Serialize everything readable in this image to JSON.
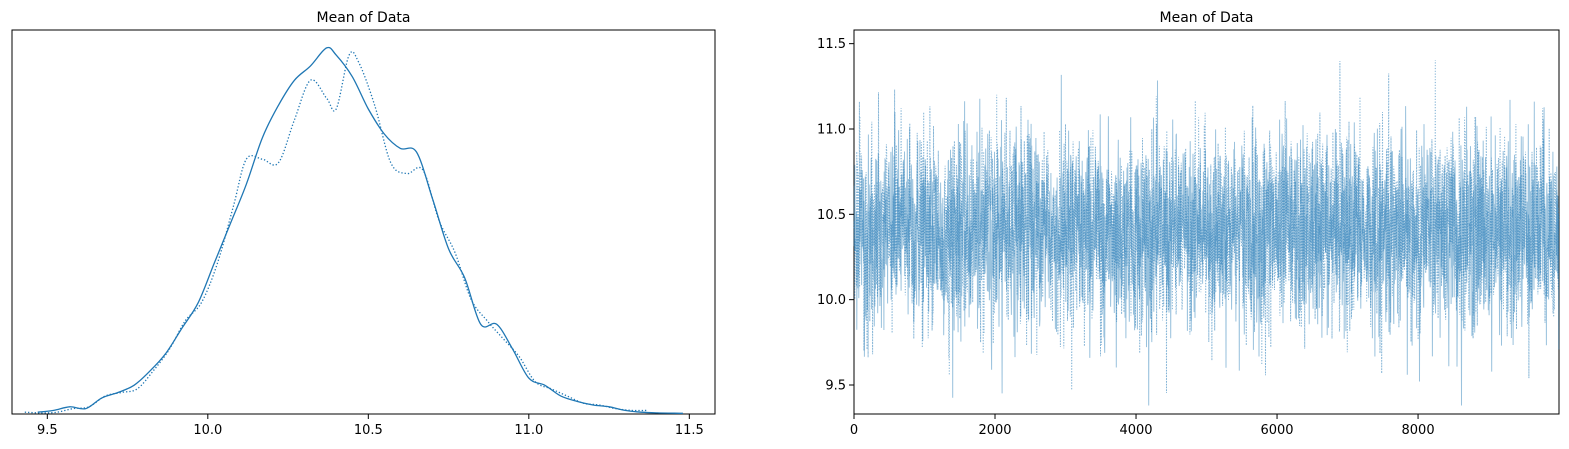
{
  "chart_data": [
    {
      "type": "line",
      "title": "Mean of Data",
      "xlabel": "",
      "ylabel": "",
      "xlim": [
        9.39,
        11.58
      ],
      "ylim": [
        0,
        1.07
      ],
      "xticks": [
        "9.5",
        "10.0",
        "10.5",
        "11.0",
        "11.5"
      ],
      "xtick_values": [
        9.5,
        10.0,
        10.5,
        11.0,
        11.5
      ],
      "yticks": [],
      "grid": false,
      "legend": "none",
      "color": "#1f77b4",
      "series": [
        {
          "style": "solid",
          "x": [
            9.47,
            9.52,
            9.57,
            9.62,
            9.67,
            9.72,
            9.77,
            9.82,
            9.87,
            9.92,
            9.97,
            10.02,
            10.07,
            10.12,
            10.17,
            10.22,
            10.27,
            10.32,
            10.37,
            10.4,
            10.45,
            10.5,
            10.55,
            10.6,
            10.65,
            10.7,
            10.75,
            10.8,
            10.85,
            10.9,
            10.95,
            11.0,
            11.05,
            11.1,
            11.15,
            11.2,
            11.25,
            11.3,
            11.35,
            11.4,
            11.48
          ],
          "y": [
            0.005,
            0.01,
            0.02,
            0.015,
            0.045,
            0.06,
            0.08,
            0.12,
            0.17,
            0.24,
            0.31,
            0.42,
            0.53,
            0.64,
            0.77,
            0.86,
            0.93,
            0.97,
            1.02,
            1.0,
            0.94,
            0.85,
            0.78,
            0.74,
            0.73,
            0.6,
            0.46,
            0.38,
            0.25,
            0.25,
            0.18,
            0.1,
            0.08,
            0.05,
            0.035,
            0.025,
            0.02,
            0.01,
            0.005,
            0.003,
            0.002
          ]
        },
        {
          "style": "dotted",
          "x": [
            9.43,
            9.48,
            9.53,
            9.58,
            9.63,
            9.68,
            9.73,
            9.78,
            9.83,
            9.88,
            9.93,
            9.98,
            10.03,
            10.08,
            10.12,
            10.17,
            10.22,
            10.27,
            10.32,
            10.37,
            10.4,
            10.44,
            10.47,
            10.52,
            10.57,
            10.62,
            10.67,
            10.72,
            10.77,
            10.82,
            10.87,
            10.92,
            10.97,
            11.02,
            11.07,
            11.12,
            11.17,
            11.22,
            11.27,
            11.32,
            11.37
          ],
          "y": [
            0.005,
            0.003,
            0.005,
            0.015,
            0.02,
            0.05,
            0.06,
            0.07,
            0.12,
            0.18,
            0.26,
            0.31,
            0.42,
            0.58,
            0.71,
            0.71,
            0.7,
            0.82,
            0.93,
            0.88,
            0.85,
            1.0,
            0.98,
            0.86,
            0.7,
            0.67,
            0.68,
            0.54,
            0.45,
            0.32,
            0.26,
            0.21,
            0.16,
            0.09,
            0.07,
            0.05,
            0.03,
            0.025,
            0.015,
            0.01,
            0.01
          ]
        }
      ]
    },
    {
      "type": "line",
      "title": "Mean of Data",
      "xlabel": "",
      "ylabel": "",
      "xlim": [
        0,
        9999
      ],
      "ylim": [
        9.33,
        11.58
      ],
      "xticks": [
        "0",
        "2000",
        "4000",
        "6000",
        "8000"
      ],
      "xtick_values": [
        0,
        2000,
        4000,
        6000,
        8000
      ],
      "yticks": [
        "9.5",
        "10.0",
        "10.5",
        "11.0",
        "11.5"
      ],
      "ytick_values": [
        9.5,
        10.0,
        10.5,
        11.0,
        11.5
      ],
      "grid": false,
      "legend": "none",
      "color": "#1f77b4",
      "n_draws": 10000,
      "trace_mean": 10.4,
      "trace_sd": 0.28,
      "series": [
        {
          "style": "solid",
          "alpha": 0.45
        },
        {
          "style": "dotted",
          "alpha": 0.55
        }
      ]
    }
  ]
}
